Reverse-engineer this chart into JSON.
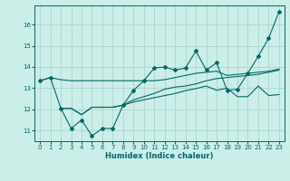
{
  "xlabel": "Humidex (Indice chaleur)",
  "background_color": "#cceee8",
  "grid_color": "#aad4ce",
  "line_color": "#006868",
  "xlim": [
    -0.5,
    23.5
  ],
  "ylim": [
    10.5,
    16.9
  ],
  "yticks": [
    11,
    12,
    13,
    14,
    15,
    16
  ],
  "xticks": [
    0,
    1,
    2,
    3,
    4,
    5,
    6,
    7,
    8,
    9,
    10,
    11,
    12,
    13,
    14,
    15,
    16,
    17,
    18,
    19,
    20,
    21,
    22,
    23
  ],
  "line1_x": [
    0,
    1,
    2,
    3,
    4,
    5,
    6,
    7,
    8,
    9,
    10,
    11,
    12,
    13,
    14,
    15,
    16,
    17,
    18,
    19,
    20,
    21,
    22,
    23
  ],
  "line1_y": [
    13.35,
    13.5,
    12.05,
    11.1,
    11.5,
    10.75,
    11.1,
    11.1,
    12.2,
    12.9,
    13.35,
    13.95,
    14.0,
    13.85,
    13.95,
    14.75,
    13.85,
    14.2,
    12.9,
    12.95,
    13.7,
    14.5,
    15.35,
    16.6
  ],
  "line2_x": [
    0,
    1,
    2,
    3,
    4,
    5,
    6,
    7,
    8,
    9,
    10,
    11,
    12,
    13,
    14,
    15,
    16,
    17,
    18,
    19,
    20,
    21,
    22,
    23
  ],
  "line2_y": [
    13.35,
    13.5,
    13.4,
    13.35,
    13.35,
    13.35,
    13.35,
    13.35,
    13.35,
    13.35,
    13.35,
    13.35,
    13.4,
    13.5,
    13.6,
    13.7,
    13.75,
    13.8,
    13.6,
    13.65,
    13.7,
    13.75,
    13.8,
    13.9
  ],
  "line3_x": [
    2,
    3,
    4,
    5,
    6,
    7,
    8,
    9,
    10,
    11,
    12,
    13,
    14,
    15,
    16,
    17,
    18,
    19,
    20,
    21,
    22,
    23
  ],
  "line3_y": [
    12.05,
    12.05,
    11.75,
    12.1,
    12.1,
    12.1,
    12.2,
    12.45,
    12.6,
    12.75,
    12.95,
    13.05,
    13.1,
    13.2,
    13.35,
    13.45,
    13.5,
    13.55,
    13.6,
    13.65,
    13.75,
    13.85
  ],
  "line4_x": [
    2,
    3,
    4,
    5,
    6,
    7,
    8,
    9,
    10,
    11,
    12,
    13,
    14,
    15,
    16,
    17,
    18,
    19,
    20,
    21,
    22,
    23
  ],
  "line4_y": [
    12.05,
    12.05,
    11.75,
    12.1,
    12.1,
    12.1,
    12.2,
    12.35,
    12.45,
    12.55,
    12.65,
    12.75,
    12.88,
    12.98,
    13.1,
    12.9,
    13.0,
    12.6,
    12.6,
    13.1,
    12.65,
    12.7
  ]
}
